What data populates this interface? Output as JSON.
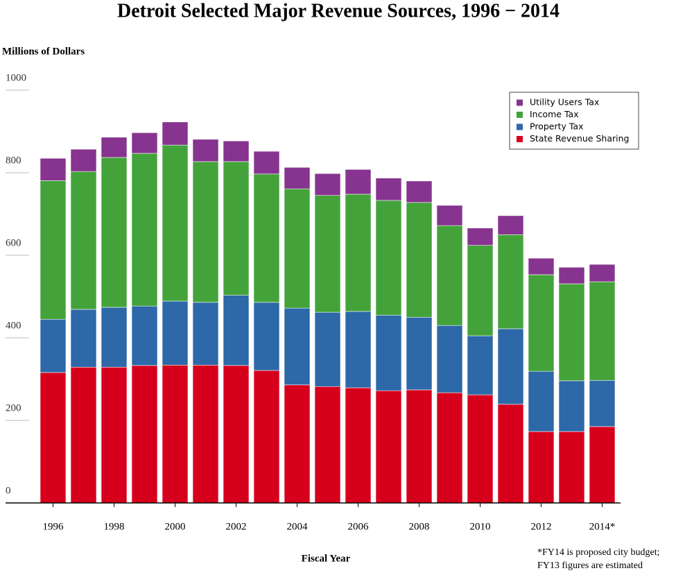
{
  "chart_data": {
    "type": "stacked_bar",
    "title": "Detroit Selected Major Revenue Sources, 1996 − 2014",
    "y_label": "Millions of Dollars",
    "x_label": "Fiscal Year",
    "note": [
      "*FY14 is proposed city budget;",
      "FY13 figures are estimated"
    ],
    "categories": [
      "1996",
      null,
      "1998",
      null,
      "2000",
      null,
      "2002",
      null,
      "2004",
      null,
      "2006",
      null,
      "2008",
      null,
      "2010",
      null,
      "2012",
      null,
      "2014*"
    ],
    "series": [
      {
        "name": "State Revenue Sharing",
        "color": "#d7001c",
        "values": [
          316,
          329,
          329,
          333,
          334,
          334,
          333,
          321,
          286,
          282,
          279,
          272,
          274,
          267,
          262,
          239,
          173,
          173,
          185
        ]
      },
      {
        "name": "Property Tax",
        "color": "#2d68a8",
        "values": [
          129,
          140,
          145,
          144,
          155,
          152,
          170,
          165,
          186,
          180,
          185,
          183,
          176,
          163,
          143,
          183,
          146,
          123,
          112
        ]
      },
      {
        "name": "Income Tax",
        "color": "#43a33a",
        "values": [
          336,
          334,
          363,
          370,
          378,
          341,
          324,
          311,
          289,
          283,
          284,
          278,
          278,
          242,
          219,
          228,
          234,
          235,
          239
        ]
      },
      {
        "name": "Utility Users Tax",
        "color": "#86348f",
        "values": [
          54,
          54,
          49,
          50,
          56,
          54,
          50,
          55,
          52,
          53,
          60,
          54,
          52,
          49,
          42,
          46,
          40,
          40,
          42
        ]
      }
    ],
    "ylim": [
      0,
      1000
    ],
    "yticks": [
      0,
      200,
      400,
      600,
      800,
      1000
    ],
    "legend": "upper right"
  }
}
